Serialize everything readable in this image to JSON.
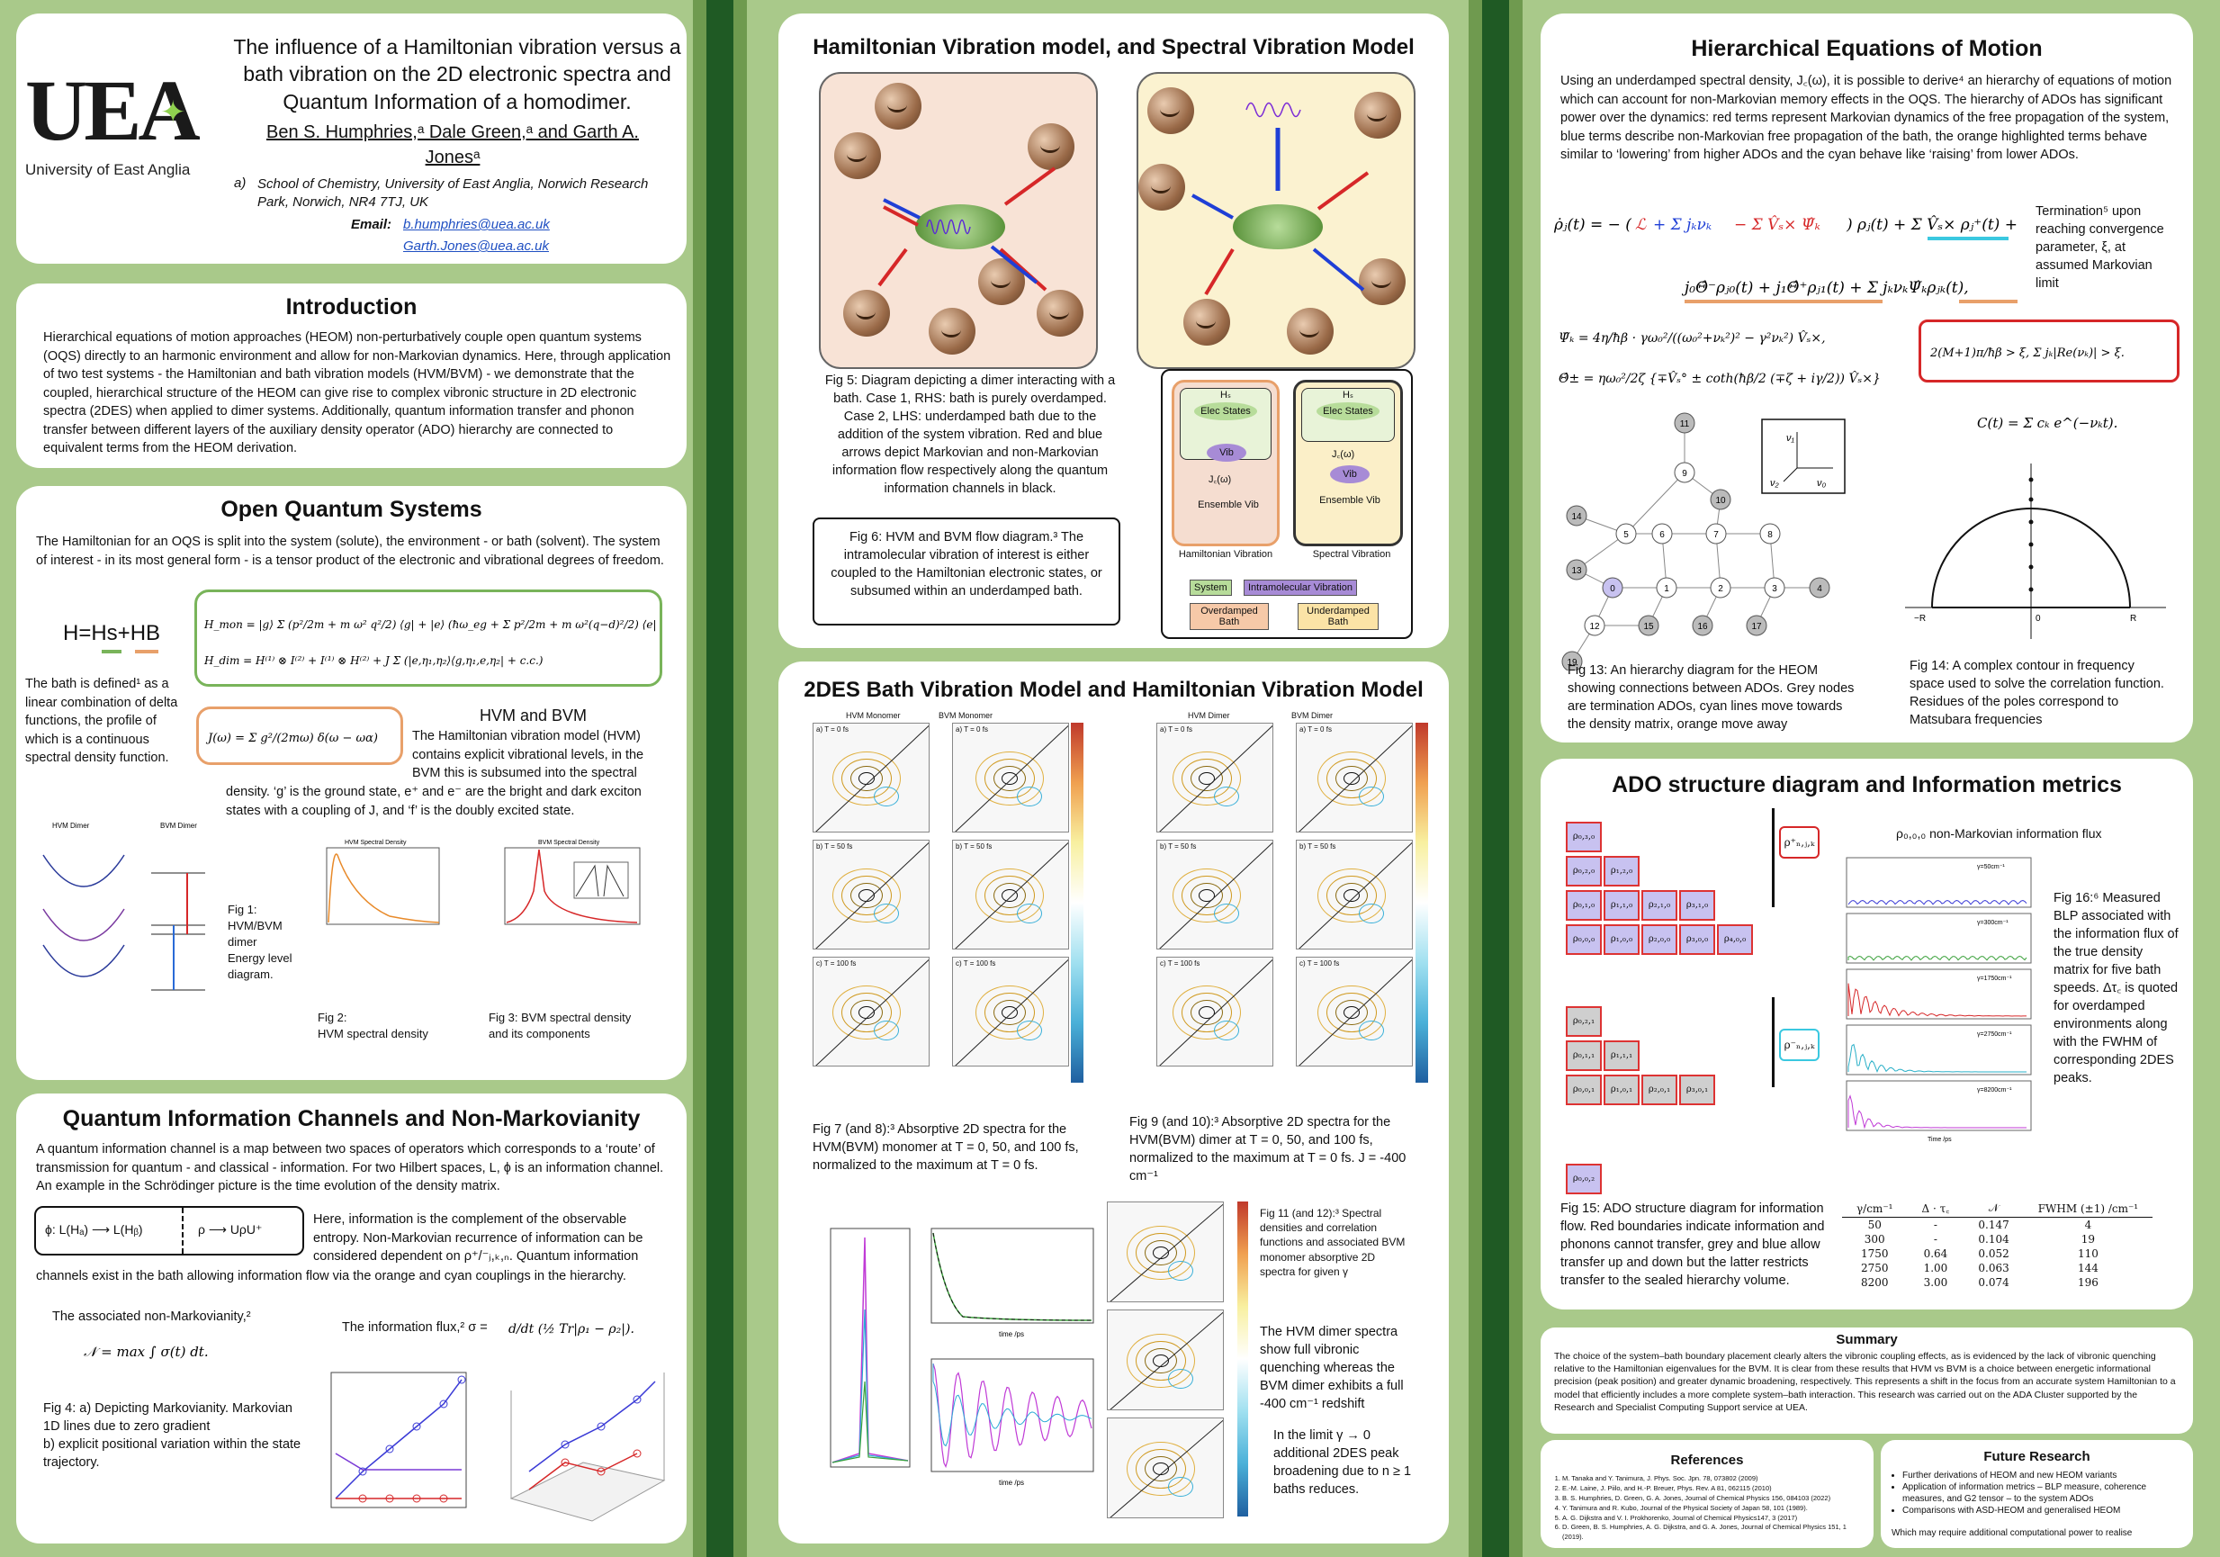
{
  "header": {
    "title": "The influence of a Hamiltonian vibration versus a bath vibration on the 2D electronic spectra and Quantum Information of a homodimer.",
    "authors": "Ben S. Humphries,ᵃ Dale Green,ᵃ and Garth A. Jonesᵃ",
    "affil_label": "a)",
    "affil": "School of Chemistry, University of East Anglia, Norwich Research Park, Norwich, NR4 7TJ, UK",
    "email_label": "Email:",
    "email1": "b.humphries@uea.ac.uk",
    "email2": "Garth.Jones@uea.ac.uk",
    "logo_text": "UEA",
    "logo_sub": "University of East Anglia"
  },
  "intro": {
    "title": "Introduction",
    "body": "Hierarchical equations of motion approaches (HEOM) non-perturbatively couple open quantum systems (OQS) directly to an harmonic environment and allow for non-Markovian dynamics. Here, through application of two test systems - the Hamiltonian and bath vibration models (HVM/BVM) - we demonstrate that the coupled, hierarchical structure of the HEOM can give rise to complex vibronic structure in 2D electronic spectra (2DES) when applied to dimer systems. Additionally, quantum information transfer and phonon transfer between different layers of the auxiliary density operator (ADO) hierarchy are connected to equivalent terms from the HEOM derivation."
  },
  "oqs": {
    "title": "Open Quantum Systems",
    "body": "The Hamiltonian for an OQS is split into the system (solute), the environment  - or bath (solvent). The system of interest - in its most general form - is a tensor product of the electronic and vibrational degrees of freedom.",
    "h_eq": "H=Hs+HB",
    "bath_text": "The bath is defined¹ as a linear combination of delta functions, the profile of which is a continuous spectral density function.",
    "hvm_title": "HVM and BVM",
    "hvm_text": "The Hamiltonian vibration model (HVM) contains explicit vibrational levels, in the BVM this is subsumed into the spectral",
    "hvm_text2": "density. ‘g’ is the ground state, e⁺ and e⁻ are the bright and dark exciton states with a coupling of J, and ‘f’ is the doubly excited state.",
    "fig1": "Fig 1: HVM/BVM dimer Energy level diagram.",
    "fig2_label": "Fig 2:",
    "fig2": "HVM spectral density",
    "fig3_label": "Fig 3:",
    "fig3": "BVM spectral density and its components",
    "fig1_h1": "HVM Dimer",
    "fig1_h2": "BVM Dimer",
    "fig2_title": "HVM Spectral Density",
    "fig3_title": "BVM Spectral Density"
  },
  "qic": {
    "title": "Quantum Information Channels and Non-Markovianity",
    "body": "A quantum information channel is a map between two spaces of operators which corresponds to a ‘route’ of transmission for quantum - and classical - information. For two Hilbert spaces, L, ϕ is an information channel. An example in the Schrödinger picture is the time evolution of the density matrix.",
    "chan_left": "ϕ: L(Hₐ) ⟶ L(Hᵦ)",
    "chan_right": "ρ ⟶ UρU⁺",
    "info_text": "Here, information is the complement of the observable entropy. Non-Markovian recurrence of information can be considered dependent on ρ⁺/⁻ⱼ,ₖ,ₙ. Quantum information",
    "info_text2": "channels exist in the bath allowing information flow via the orange and cyan couplings in the hierarchy.",
    "nm_label": "The associated non-Markovianity,²",
    "flux_label": "The information flux,² σ =",
    "fig4": "Fig 4: a) Depicting Markovianity. Markovian 1D lines due to zero gradient\nb) explicit positional variation within the state trajectory."
  },
  "hvm_bvm": {
    "title": "Hamiltonian Vibration model, and Spectral Vibration Model",
    "fig5": "Fig 5: Diagram depicting a dimer interacting with a bath. Case 1, RHS: bath is purely overdamped. Case 2, LHS: underdamped bath due to the addition of the system vibration. Red and blue arrows depict Markovian and non-Markovian information flow respectively along the quantum information channels in black.",
    "fig6": "Fig 6: HVM and BVM flow diagram.³ The intramolecular vibration of interest is either coupled to the Hamiltonian electronic states, or subsumed within an underdamped bath.",
    "hs": "Hₛ",
    "elec": "Elec States",
    "vib": "Vib",
    "jw": "J꜀(ω)",
    "ens": "Ensemble Vib",
    "hv_lbl": "Hamiltonian Vibration",
    "sv_lbl": "Spectral Vibration",
    "leg_sys": "System",
    "leg_intra": "Intramolecular Vibration",
    "leg_over": "Overdamped Bath",
    "leg_under": "Underdamped Bath"
  },
  "twodes": {
    "title": "2DES Bath Vibration Model and Hamiltonian Vibration Model",
    "col1": "HVM Monomer",
    "col2": "BVM Monomer",
    "col3": "HVM Dimer",
    "col4": "BVM Dimer",
    "rows": [
      "a) T = 0 fs",
      "b) T = 50 fs",
      "c) T = 100 fs"
    ],
    "fig7": "Fig 7 (and 8):³ Absorptive 2D spectra for the HVM(BVM) monomer at T = 0, 50, and 100 fs, normalized to the maximum at T = 0 fs.",
    "fig9": "Fig 9 (and 10):³ Absorptive 2D spectra for the HVM(BVM) dimer at T = 0, 50, and 100 fs, normalized to the maximum at T = 0 fs. J = -400 cm⁻¹",
    "fig11": "Fig 11 (and 12):³ Spectral densities and correlation functions and associated BVM monomer absorptive 2D spectra for given γ",
    "hvm_note": "The HVM dimer spectra show full vibronic quenching whereas the BVM dimer exhibits a full -400 cm⁻¹ redshift",
    "limit_note": "In the limit γ → 0 additional 2DES peak broadening due to n ≥ 1 baths reduces.",
    "time_axis": "time /ps"
  },
  "heom": {
    "title": "Hierarchical Equations of Motion",
    "body": "Using an underdamped spectral density, J꜀(ω), it is possible to derive⁴ an hierarchy of equations of motion which can account for non-Markovian memory effects in the OQS. The hierarchy of ADOs has significant power over the dynamics:  red terms represent Markovian dynamics of the free propagation of the system, blue terms describe non-Markovian free propagation of the bath, the orange highlighted terms behave similar to ‘lowering’ from higher ADOs and the cyan behave like ‘raising’ from lower ADOs.",
    "termination": "Termination⁵ upon reaching convergence parameter, ξ, at assumed Markovian limit",
    "fig13": "Fig 13: An hierarchy diagram for the HEOM showing connections between ADOs. Grey nodes are termination ADOs, cyan lines move towards the density matrix, orange move away",
    "fig14": "Fig 14: A complex contour in frequency space used to solve the correlation function. Residues of the poles correspond to Matsubara frequencies"
  },
  "ado": {
    "title": "ADO structure diagram and Information metrics",
    "flux_label": "ρ₀,₀,₀ non-Markovian information flux",
    "fig15": "Fig 15: ADO structure diagram for information flow. Red boundaries indicate information and phonons cannot transfer, grey and blue allow transfer up and down but the latter restricts transfer to the sealed hierarchy volume.",
    "fig16": "Fig 16:⁶ Measured BLP associated with the information flux of the true density matrix for five bath speeds. Δτ꜀ is quoted for overdamped environments along with the FWHM of corresponding 2DES peaks.",
    "table_head": [
      "γ/cm⁻¹",
      "Δ · τ꜀",
      "𝒩",
      "FWHM (±1) /cm⁻¹"
    ],
    "table_rows": [
      [
        "50",
        "-",
        "0.147",
        "4"
      ],
      [
        "300",
        "-",
        "0.104",
        "19"
      ],
      [
        "1750",
        "0.64",
        "0.052",
        "110"
      ],
      [
        "2750",
        "1.00",
        "0.063",
        "144"
      ],
      [
        "8200",
        "3.00",
        "0.074",
        "196"
      ]
    ],
    "trace_labels": [
      "γ=50cm⁻¹",
      "γ=300cm⁻¹",
      "γ=1750cm⁻¹",
      "γ=2750cm⁻¹",
      "γ=8200cm⁻¹"
    ],
    "time_axis": "Time /ps"
  },
  "summary": {
    "title": "Summary",
    "body": "The choice of the system–bath boundary placement clearly alters the vibronic coupling effects, as is evidenced by the lack of vibronic quenching relative to the Hamiltonian eigenvalues for the BVM. It is clear from these results that HVM vs BVM is a choice between energetic informational precision (peak position) and greater dynamic broadening, respectively. This represents a shift in the focus from an accurate system Hamiltonian to a model that efficiently includes a more complete system–bath interaction. This research was carried out on the ADA Cluster supported by the Research and Specialist Computing Support service at UEA."
  },
  "refs": {
    "title": "References",
    "items": [
      "M. Tanaka and Y. Tanimura, J. Phys. Soc. Jpn. 78, 073802 (2009)",
      "E.-M. Laine, J. Piilo, and H.-P. Breuer, Phys. Rev. A 81, 062115 (2010)",
      "B. S. Humphries, D. Green, G. A. Jones, Journal of Chemical Physics 156, 084103 (2022)",
      "Y. Tanimura and R. Kubo, Journal of the Physical Society of Japan 58, 101 (1989).",
      "A. G. Dijkstra and V. I. Prokhorenko, Journal of Chemical Physics147, 3 (2017)",
      "D. Green, B. S. Humphries, A. G. Dijkstra, and G. A. Jones, Journal of Chemical Physics 151, 1 (2019)."
    ]
  },
  "future": {
    "title": "Future Research",
    "items": [
      "Further derivations of HEOM and new HEOM variants",
      "Application of information metrics – BLP measure, coherence measures, and G2 tensor – to the system ADOs",
      "Comparisons with ASD-HEOM and generalised HEOM"
    ],
    "tail": "Which may require additional computational power  to realise"
  },
  "colors": {
    "background": "#a9c98a",
    "band_dark": "#1f5a24",
    "green_box": "#79b45a",
    "orange_box": "#e8a06a",
    "markov_red": "#d62728",
    "nonmarkov_blue": "#1f3fd6"
  }
}
